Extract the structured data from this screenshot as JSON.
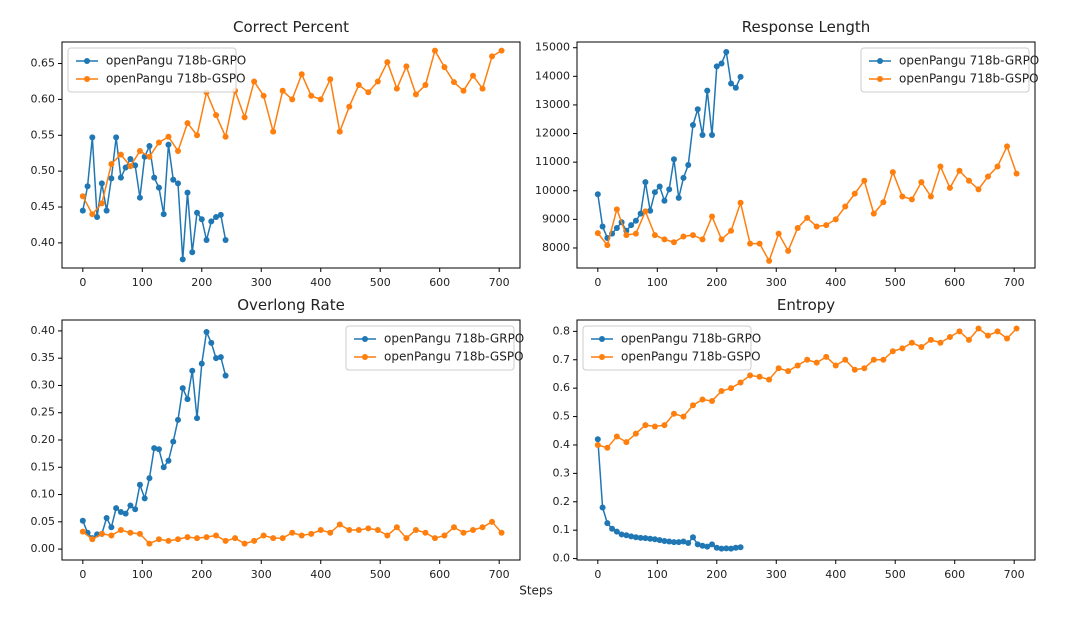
{
  "figure": {
    "xlabel": "Steps"
  },
  "chart_data": [
    {
      "type": "line",
      "title": "Correct Percent",
      "legend": "upper left",
      "xlim": [
        -35,
        735
      ],
      "ylim": [
        0.365,
        0.68
      ],
      "xticks": [
        0,
        100,
        200,
        300,
        400,
        500,
        600,
        700
      ],
      "yticks": [
        {
          "value": 0.4,
          "label": "0.40"
        },
        0.45,
        {
          "value": 0.5,
          "label": "0.50"
        },
        0.55,
        {
          "value": 0.6,
          "label": "0.60"
        },
        0.65
      ],
      "series": [
        {
          "name": "openPangu 718b-GRPO",
          "color": "#1f77b4",
          "x": [
            0,
            8,
            16,
            24,
            32,
            40,
            48,
            56,
            64,
            72,
            80,
            88,
            96,
            104,
            112,
            120,
            128,
            136,
            144,
            152,
            160,
            168,
            176,
            184,
            192,
            200,
            208,
            216,
            224,
            232,
            240
          ],
          "values": [
            0.445,
            0.479,
            0.547,
            0.436,
            0.483,
            0.445,
            0.49,
            0.547,
            0.491,
            0.505,
            0.517,
            0.508,
            0.463,
            0.52,
            0.535,
            0.491,
            0.477,
            0.44,
            0.537,
            0.488,
            0.483,
            0.377,
            0.47,
            0.387,
            0.442,
            0.433,
            0.404,
            0.43,
            0.436,
            0.439,
            0.404
          ]
        },
        {
          "name": "openPangu 718b-GSPO",
          "color": "#ff7f0e",
          "x": [
            0,
            16,
            32,
            48,
            64,
            80,
            96,
            112,
            128,
            144,
            160,
            176,
            192,
            208,
            224,
            240,
            256,
            272,
            288,
            304,
            320,
            336,
            352,
            368,
            384,
            400,
            416,
            432,
            448,
            464,
            480,
            496,
            512,
            528,
            544,
            560,
            576,
            592,
            608,
            624,
            640,
            656,
            672,
            688,
            704
          ],
          "values": [
            0.465,
            0.44,
            0.455,
            0.51,
            0.523,
            0.507,
            0.528,
            0.52,
            0.54,
            0.548,
            0.528,
            0.567,
            0.55,
            0.61,
            0.578,
            0.548,
            0.612,
            0.575,
            0.625,
            0.605,
            0.555,
            0.612,
            0.6,
            0.635,
            0.605,
            0.6,
            0.628,
            0.555,
            0.59,
            0.62,
            0.61,
            0.625,
            0.652,
            0.615,
            0.646,
            0.607,
            0.62,
            0.668,
            0.645,
            0.624,
            0.612,
            0.633,
            0.615,
            0.66,
            0.668
          ]
        }
      ]
    },
    {
      "type": "line",
      "title": "Response Length",
      "legend": "upper right",
      "xlim": [
        -35,
        735
      ],
      "ylim": [
        7300,
        15200
      ],
      "xticks": [
        0,
        100,
        200,
        300,
        400,
        500,
        600,
        700
      ],
      "yticks": [
        8000,
        9000,
        10000,
        11000,
        12000,
        13000,
        14000,
        15000
      ],
      "series": [
        {
          "name": "openPangu 718b-GRPO",
          "color": "#1f77b4",
          "x": [
            0,
            8,
            16,
            24,
            32,
            40,
            48,
            56,
            64,
            72,
            80,
            88,
            96,
            104,
            112,
            120,
            128,
            136,
            144,
            152,
            160,
            168,
            176,
            184,
            192,
            200,
            208,
            216,
            224,
            232,
            240
          ],
          "values": [
            9880,
            8750,
            8350,
            8500,
            8700,
            8900,
            8600,
            8800,
            8950,
            9200,
            10300,
            9300,
            9950,
            10150,
            9650,
            10050,
            11100,
            9750,
            10450,
            10900,
            12300,
            12850,
            11950,
            13500,
            11950,
            14350,
            14450,
            14850,
            13750,
            13600,
            13980
          ]
        },
        {
          "name": "openPangu 718b-GSPO",
          "color": "#ff7f0e",
          "x": [
            0,
            16,
            32,
            48,
            64,
            80,
            96,
            112,
            128,
            144,
            160,
            176,
            192,
            208,
            224,
            240,
            256,
            272,
            288,
            304,
            320,
            336,
            352,
            368,
            384,
            400,
            416,
            432,
            448,
            464,
            480,
            496,
            512,
            528,
            544,
            560,
            576,
            592,
            608,
            624,
            640,
            656,
            672,
            688,
            704
          ],
          "values": [
            8520,
            8100,
            9350,
            8450,
            8500,
            9280,
            8450,
            8300,
            8200,
            8400,
            8450,
            8300,
            9100,
            8300,
            8600,
            9580,
            8150,
            8150,
            7550,
            8500,
            7900,
            8700,
            9050,
            8750,
            8800,
            9000,
            9450,
            9900,
            10350,
            9200,
            9600,
            10650,
            9800,
            9700,
            10300,
            9800,
            10850,
            10100,
            10700,
            10350,
            10050,
            10500,
            10850,
            11550,
            10600
          ]
        }
      ]
    },
    {
      "type": "line",
      "title": "Overlong Rate",
      "legend": "upper right",
      "xlim": [
        -35,
        735
      ],
      "ylim": [
        -0.02,
        0.42
      ],
      "xticks": [
        0,
        100,
        200,
        300,
        400,
        500,
        600,
        700
      ],
      "yticks": [
        {
          "value": 0,
          "label": "0.00"
        },
        0.05,
        {
          "value": 0.1,
          "label": "0.10"
        },
        0.15,
        {
          "value": 0.2,
          "label": "0.20"
        },
        0.25,
        {
          "value": 0.3,
          "label": "0.30"
        },
        0.35,
        {
          "value": 0.4,
          "label": "0.40"
        }
      ],
      "series": [
        {
          "name": "openPangu 718b-GRPO",
          "color": "#1f77b4",
          "x": [
            0,
            8,
            16,
            24,
            32,
            40,
            48,
            56,
            64,
            72,
            80,
            88,
            96,
            104,
            112,
            120,
            128,
            136,
            144,
            152,
            160,
            168,
            176,
            184,
            192,
            200,
            208,
            216,
            224,
            232,
            240
          ],
          "values": [
            0.052,
            0.03,
            0.02,
            0.027,
            0.028,
            0.057,
            0.04,
            0.075,
            0.068,
            0.065,
            0.08,
            0.073,
            0.118,
            0.093,
            0.13,
            0.185,
            0.183,
            0.15,
            0.162,
            0.197,
            0.237,
            0.295,
            0.275,
            0.327,
            0.24,
            0.34,
            0.398,
            0.378,
            0.35,
            0.352,
            0.318
          ]
        },
        {
          "name": "openPangu 718b-GSPO",
          "color": "#ff7f0e",
          "x": [
            0,
            16,
            32,
            48,
            64,
            80,
            96,
            112,
            128,
            144,
            160,
            176,
            192,
            208,
            224,
            240,
            256,
            272,
            288,
            304,
            320,
            336,
            352,
            368,
            384,
            400,
            416,
            432,
            448,
            464,
            480,
            496,
            512,
            528,
            544,
            560,
            576,
            592,
            608,
            624,
            640,
            656,
            672,
            688,
            704
          ],
          "values": [
            0.032,
            0.018,
            0.028,
            0.025,
            0.035,
            0.03,
            0.028,
            0.01,
            0.018,
            0.015,
            0.018,
            0.022,
            0.02,
            0.022,
            0.025,
            0.015,
            0.02,
            0.01,
            0.015,
            0.025,
            0.02,
            0.02,
            0.03,
            0.025,
            0.028,
            0.035,
            0.03,
            0.045,
            0.035,
            0.035,
            0.038,
            0.035,
            0.025,
            0.04,
            0.02,
            0.035,
            0.03,
            0.02,
            0.025,
            0.04,
            0.03,
            0.035,
            0.04,
            0.05,
            0.03
          ]
        }
      ]
    },
    {
      "type": "line",
      "title": "Entropy",
      "legend": "upper left",
      "xlim": [
        -35,
        735
      ],
      "ylim": [
        -0.005,
        0.84
      ],
      "xticks": [
        0,
        100,
        200,
        300,
        400,
        500,
        600,
        700
      ],
      "yticks": [
        {
          "value": 0,
          "label": "0.0"
        },
        0.1,
        0.2,
        0.3,
        0.4,
        0.5,
        0.6,
        0.7,
        0.8
      ],
      "series": [
        {
          "name": "openPangu 718b-GRPO",
          "color": "#1f77b4",
          "x": [
            0,
            8,
            16,
            24,
            32,
            40,
            48,
            56,
            64,
            72,
            80,
            88,
            96,
            104,
            112,
            120,
            128,
            136,
            144,
            152,
            160,
            168,
            176,
            184,
            192,
            200,
            208,
            216,
            224,
            232,
            240
          ],
          "values": [
            0.42,
            0.18,
            0.125,
            0.105,
            0.095,
            0.085,
            0.082,
            0.078,
            0.075,
            0.073,
            0.072,
            0.07,
            0.068,
            0.065,
            0.062,
            0.06,
            0.058,
            0.058,
            0.06,
            0.055,
            0.075,
            0.05,
            0.045,
            0.042,
            0.05,
            0.038,
            0.035,
            0.036,
            0.035,
            0.038,
            0.04
          ]
        },
        {
          "name": "openPangu 718b-GSPO",
          "color": "#ff7f0e",
          "x": [
            0,
            16,
            32,
            48,
            64,
            80,
            96,
            112,
            128,
            144,
            160,
            176,
            192,
            208,
            224,
            240,
            256,
            272,
            288,
            304,
            320,
            336,
            352,
            368,
            384,
            400,
            416,
            432,
            448,
            464,
            480,
            496,
            512,
            528,
            544,
            560,
            576,
            592,
            608,
            624,
            640,
            656,
            672,
            688,
            704
          ],
          "values": [
            0.4,
            0.39,
            0.43,
            0.41,
            0.44,
            0.47,
            0.465,
            0.47,
            0.51,
            0.5,
            0.54,
            0.56,
            0.555,
            0.59,
            0.6,
            0.62,
            0.645,
            0.64,
            0.63,
            0.67,
            0.66,
            0.68,
            0.7,
            0.69,
            0.71,
            0.68,
            0.7,
            0.665,
            0.67,
            0.7,
            0.7,
            0.73,
            0.74,
            0.76,
            0.745,
            0.77,
            0.76,
            0.78,
            0.8,
            0.77,
            0.81,
            0.785,
            0.8,
            0.775,
            0.81
          ]
        }
      ]
    }
  ]
}
